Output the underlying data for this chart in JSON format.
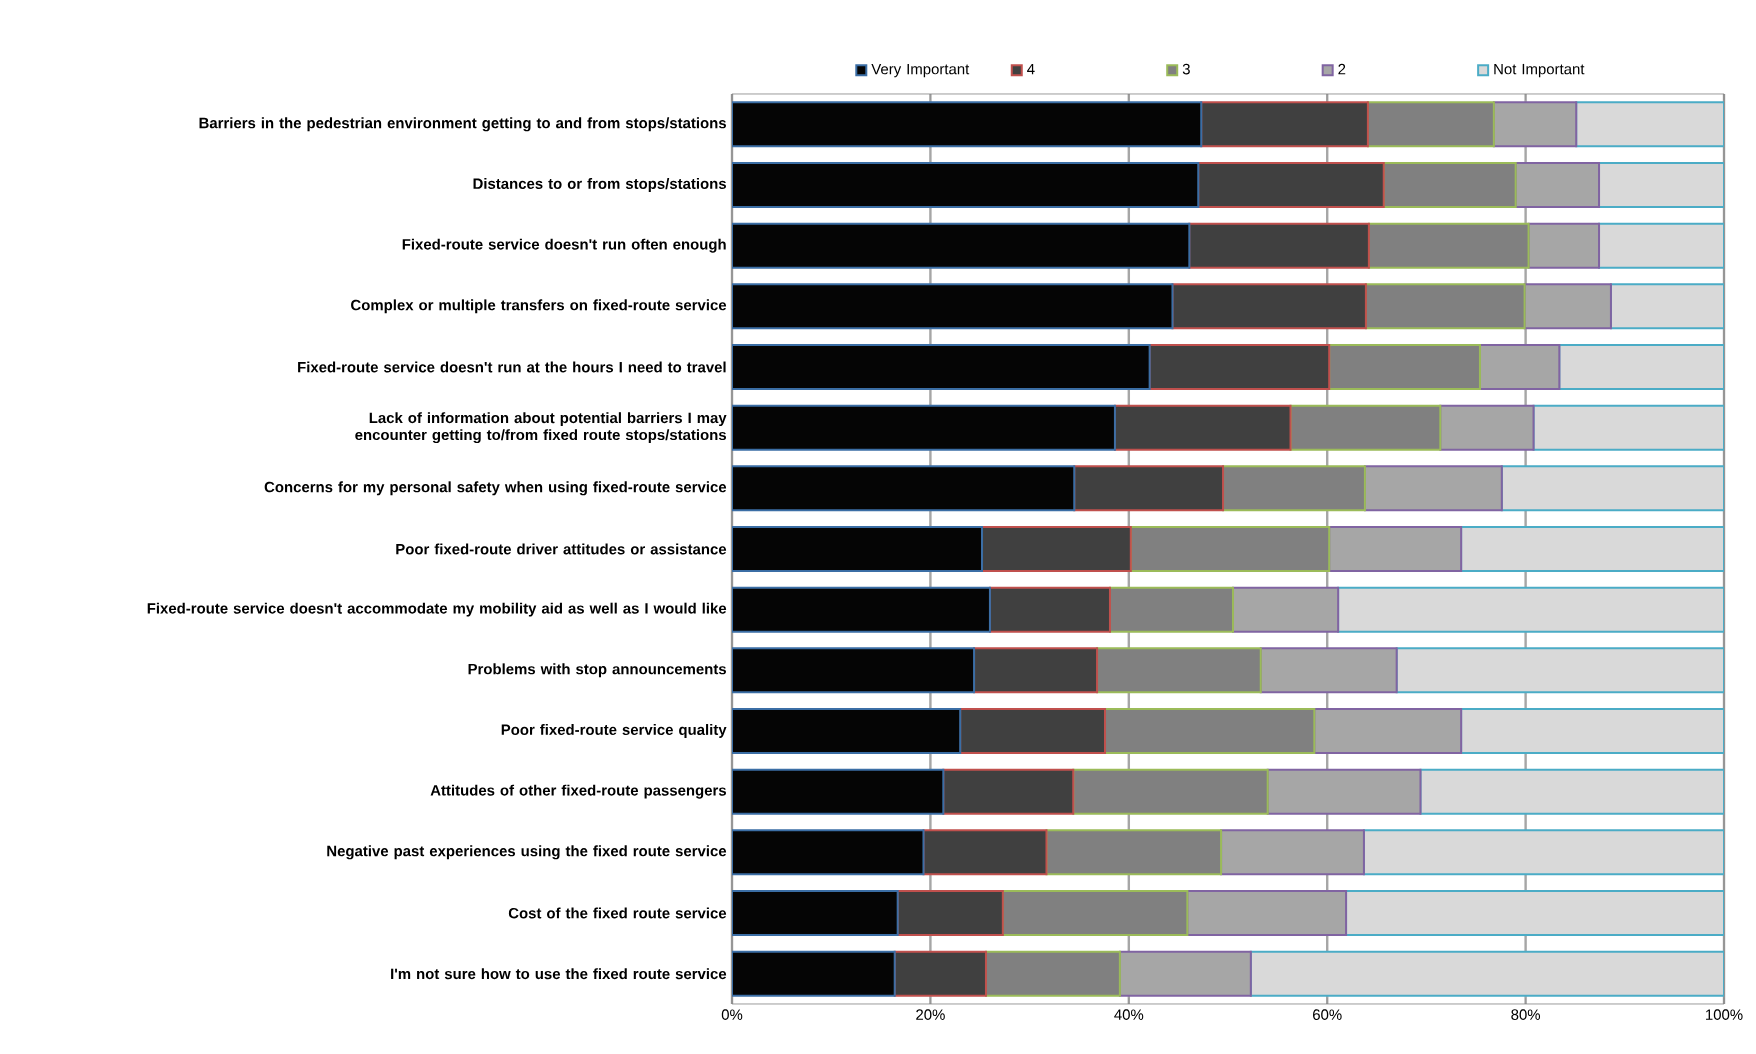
{
  "chart_data": {
    "type": "bar",
    "orientation": "horizontal",
    "stacked": true,
    "categories": [
      "Barriers in the pedestrian environment getting to and from stops/stations",
      "Distances to or from stops/stations",
      "Fixed-route service doesn't run often enough",
      "Complex or multiple transfers on fixed-route service",
      "Fixed-route service doesn't run at the hours I need to travel",
      "Lack of information about potential barriers I may encounter getting to/from fixed route stops/stations",
      "Concerns for my personal safety when using fixed-route service",
      "Poor fixed-route driver attitudes or assistance",
      "Fixed-route service doesn't accommodate my mobility aid as well as I would like",
      "Problems with stop announcements",
      "Poor fixed-route service quality",
      "Attitudes of other fixed-route passengers",
      "Negative past experiences using the fixed route service",
      "Cost of the fixed route service",
      "I'm not sure how to use the fixed route service"
    ],
    "series": [
      {
        "name": "Very Important",
        "color": "#050505",
        "values": [
          47.3,
          47.0,
          46.1,
          44.4,
          42.1,
          38.6,
          34.5,
          25.2,
          26.0,
          24.4,
          23.0,
          21.3,
          19.3,
          16.7,
          16.4
        ]
      },
      {
        "name": "4",
        "color": "#404040",
        "values": [
          16.8,
          18.7,
          18.1,
          19.5,
          18.1,
          17.7,
          15.0,
          15.0,
          12.1,
          12.4,
          14.6,
          13.1,
          12.4,
          10.6,
          9.2
        ]
      },
      {
        "name": "3",
        "color": "#808080",
        "values": [
          12.7,
          13.3,
          16.1,
          16.0,
          15.2,
          15.1,
          14.3,
          20.0,
          12.4,
          16.5,
          21.1,
          19.6,
          17.6,
          18.6,
          13.5
        ]
      },
      {
        "name": "2",
        "color": "#a6a6a6",
        "values": [
          8.3,
          8.4,
          7.1,
          8.7,
          8.0,
          9.4,
          13.8,
          13.3,
          10.6,
          13.7,
          14.8,
          15.4,
          14.4,
          16.0,
          13.2
        ]
      },
      {
        "name": "Not Important",
        "color": "#d9d9d9",
        "values": [
          14.9,
          12.6,
          12.6,
          11.4,
          16.6,
          19.2,
          22.4,
          26.5,
          38.9,
          33.0,
          26.5,
          30.6,
          36.3,
          38.1,
          47.7
        ]
      }
    ],
    "xlim": [
      0,
      100
    ],
    "xticks": [
      {
        "value": 0,
        "label": "0%"
      },
      {
        "value": 20,
        "label": "20%"
      },
      {
        "value": 40,
        "label": "40%"
      },
      {
        "value": 60,
        "label": "60%"
      },
      {
        "value": 80,
        "label": "80%"
      },
      {
        "value": 100,
        "label": "100%"
      }
    ],
    "grid": "x",
    "legend": "top"
  }
}
